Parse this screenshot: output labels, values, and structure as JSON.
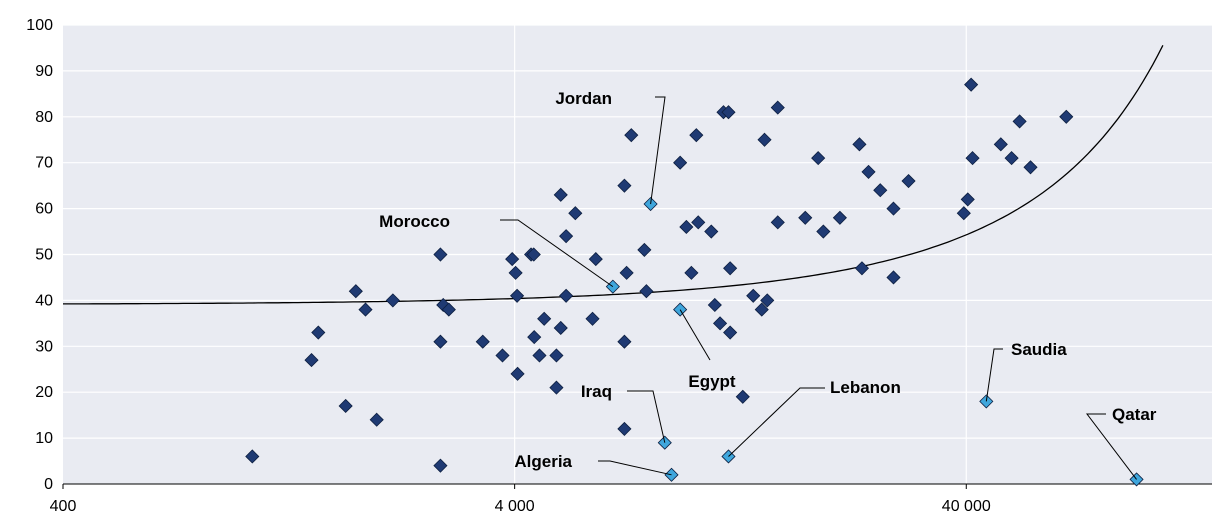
{
  "chart_data": {
    "type": "scatter",
    "x_scale": "log",
    "xlim": [
      400,
      140000
    ],
    "ylim": [
      0,
      100
    ],
    "x_ticks": [
      400,
      4000,
      40000
    ],
    "x_tick_labels": [
      "400",
      "4 000",
      "40 000"
    ],
    "y_ticks": [
      0,
      10,
      20,
      30,
      40,
      50,
      60,
      70,
      80,
      90,
      100
    ],
    "grid": true,
    "colors": {
      "background": "#e9ebf2",
      "gridline": "#ffffff",
      "points": "#1f3a73",
      "highlight": "#3fa6dc",
      "trend": "#000000"
    },
    "series": [
      {
        "points": [
          [
            1050,
            6
          ],
          [
            1420,
            27
          ],
          [
            1470,
            33
          ],
          [
            1690,
            17
          ],
          [
            1780,
            42
          ],
          [
            1980,
            14
          ],
          [
            1870,
            38
          ],
          [
            2150,
            40
          ],
          [
            2740,
            4
          ],
          [
            2740,
            31
          ],
          [
            2740,
            50
          ],
          [
            2780,
            39
          ],
          [
            2860,
            38
          ],
          [
            3400,
            31
          ],
          [
            3760,
            28
          ],
          [
            3950,
            49
          ],
          [
            4050,
            41
          ],
          [
            4020,
            46
          ],
          [
            4060,
            24
          ],
          [
            4350,
            50
          ],
          [
            4420,
            32
          ],
          [
            4540,
            28
          ],
          [
            4650,
            36
          ],
          [
            4410,
            50
          ],
          [
            4950,
            28
          ],
          [
            4950,
            21
          ],
          [
            5060,
            63
          ],
          [
            5060,
            34
          ],
          [
            5200,
            54
          ],
          [
            5200,
            41
          ],
          [
            5450,
            59
          ],
          [
            5950,
            36
          ],
          [
            6050,
            49
          ],
          [
            7000,
            31
          ],
          [
            7000,
            12
          ],
          [
            7080,
            46
          ],
          [
            7000,
            65
          ],
          [
            7250,
            76
          ],
          [
            7750,
            51
          ],
          [
            7830,
            42
          ],
          [
            9300,
            70
          ],
          [
            9600,
            56
          ],
          [
            9850,
            46
          ],
          [
            10100,
            76
          ],
          [
            10200,
            57
          ],
          [
            10900,
            55
          ],
          [
            11100,
            39
          ],
          [
            11400,
            35
          ],
          [
            11600,
            81
          ],
          [
            11900,
            81
          ],
          [
            12000,
            33
          ],
          [
            12000,
            47
          ],
          [
            12800,
            19
          ],
          [
            13500,
            41
          ],
          [
            14100,
            38
          ],
          [
            14500,
            40
          ],
          [
            14300,
            75
          ],
          [
            15300,
            57
          ],
          [
            15300,
            82
          ],
          [
            17600,
            58
          ],
          [
            18800,
            71
          ],
          [
            19300,
            55
          ],
          [
            21000,
            58
          ],
          [
            23200,
            74
          ],
          [
            23500,
            47
          ],
          [
            24300,
            68
          ],
          [
            25800,
            64
          ],
          [
            27600,
            60
          ],
          [
            27600,
            45
          ],
          [
            29800,
            66
          ],
          [
            39500,
            59
          ],
          [
            40300,
            62
          ],
          [
            41000,
            87
          ],
          [
            41300,
            71
          ],
          [
            47700,
            74
          ],
          [
            50400,
            71
          ],
          [
            52500,
            79
          ],
          [
            55500,
            69
          ],
          [
            66600,
            80
          ]
        ]
      },
      {
        "labeled_points": [
          {
            "label": "Jordan",
            "x": 8000,
            "y": 61
          },
          {
            "label": "Morocco",
            "x": 6600,
            "y": 43
          },
          {
            "label": "Egypt",
            "x": 9300,
            "y": 38
          },
          {
            "label": "Iraq",
            "x": 8600,
            "y": 9
          },
          {
            "label": "Algeria",
            "x": 8900,
            "y": 2
          },
          {
            "label": "Lebanon",
            "x": 11900,
            "y": 6
          },
          {
            "label": "Saudia",
            "x": 44300,
            "y": 18
          },
          {
            "label": "Qatar",
            "x": 95300,
            "y": 1
          }
        ]
      }
    ],
    "trend": {
      "type": "exponential",
      "intercept": 39.1,
      "slope": 0.00082,
      "x_range": [
        400,
        109000
      ]
    }
  }
}
